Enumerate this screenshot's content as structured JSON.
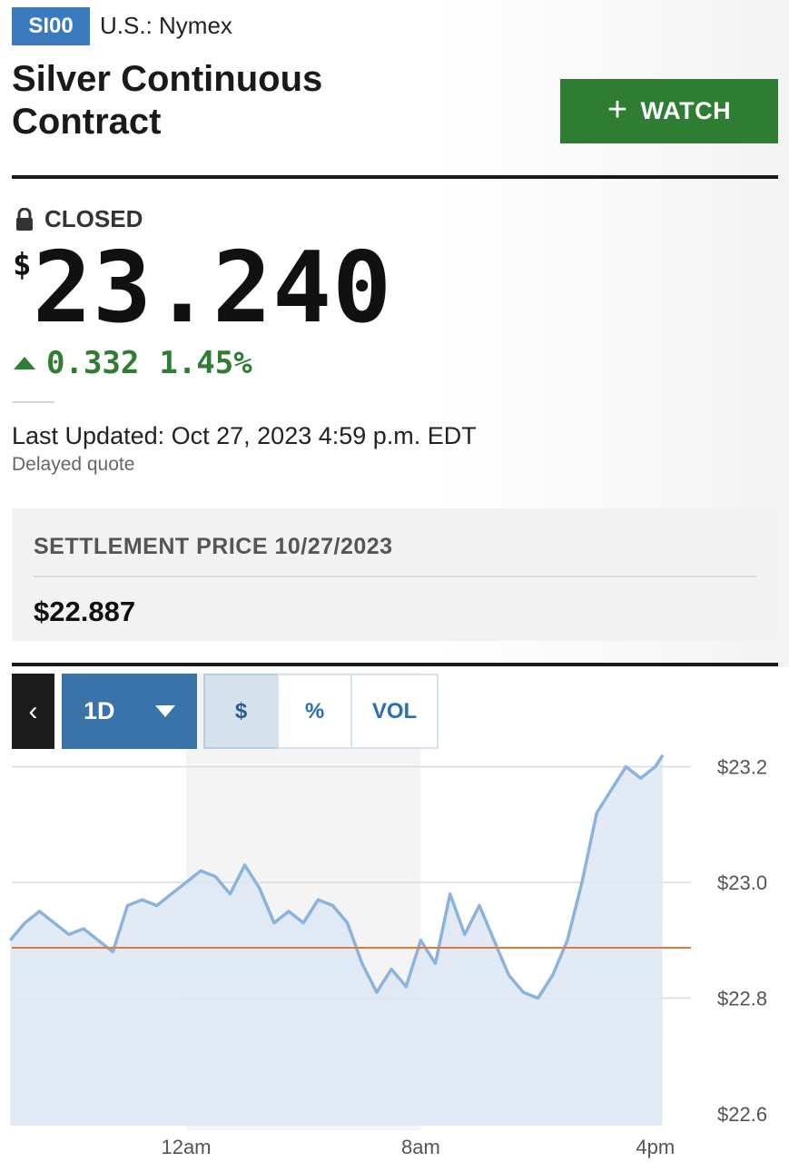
{
  "header": {
    "ticker": "SI00",
    "exchange": "U.S.: Nymex",
    "title_line1": "Silver Continuous",
    "title_line2": "Contract",
    "watch_label": "WATCH"
  },
  "quote": {
    "status": "CLOSED",
    "currency_symbol": "$",
    "price": "23.240",
    "change": "0.332",
    "change_percent": "1.45%",
    "direction": "up",
    "last_updated": "Last Updated: Oct 27, 2023 4:59 p.m. EDT",
    "delay_note": "Delayed quote"
  },
  "settlement": {
    "label": "SETTLEMENT PRICE 10/27/2023",
    "value": "$22.887"
  },
  "chart_toolbar": {
    "back_label": "‹",
    "range": "1D",
    "modes": [
      "$",
      "%",
      "VOL"
    ],
    "active_mode": "$"
  },
  "colors": {
    "accent_blue": "#3a7bbf",
    "watch_green": "#2e7d32",
    "positive_green": "#2e7d32",
    "line_blue": "#8ab4dc",
    "settlement_line": "#e07a3a"
  },
  "chart_data": {
    "type": "area",
    "x_ticks": [
      "12am",
      "8am",
      "4pm"
    ],
    "y_ticks": [
      "$22.6",
      "$22.8",
      "$23.0",
      "$23.2"
    ],
    "ylim": [
      22.6,
      23.22
    ],
    "reference_line": 22.887,
    "x_hours": [
      -6,
      -5.5,
      -5,
      -4.5,
      -4,
      -3.5,
      -3,
      -2.5,
      -2,
      -1.5,
      -1,
      -0.5,
      0,
      0.5,
      1,
      1.5,
      2,
      2.5,
      3,
      3.5,
      4,
      4.5,
      5,
      5.5,
      6,
      6.5,
      7,
      7.5,
      8,
      8.5,
      9,
      9.5,
      10,
      10.5,
      11,
      11.5,
      12,
      12.5,
      13,
      13.5,
      14,
      14.5,
      15,
      15.5,
      16,
      16.25
    ],
    "values": [
      22.9,
      22.93,
      22.95,
      22.93,
      22.91,
      22.92,
      22.9,
      22.88,
      22.96,
      22.97,
      22.96,
      22.98,
      23.0,
      23.02,
      23.01,
      22.98,
      23.03,
      22.99,
      22.93,
      22.95,
      22.93,
      22.97,
      22.96,
      22.93,
      22.86,
      22.81,
      22.85,
      22.82,
      22.9,
      22.86,
      22.98,
      22.91,
      22.96,
      22.9,
      22.84,
      22.81,
      22.8,
      22.84,
      22.9,
      23.0,
      23.12,
      23.16,
      23.2,
      23.18,
      23.2,
      23.22
    ]
  }
}
